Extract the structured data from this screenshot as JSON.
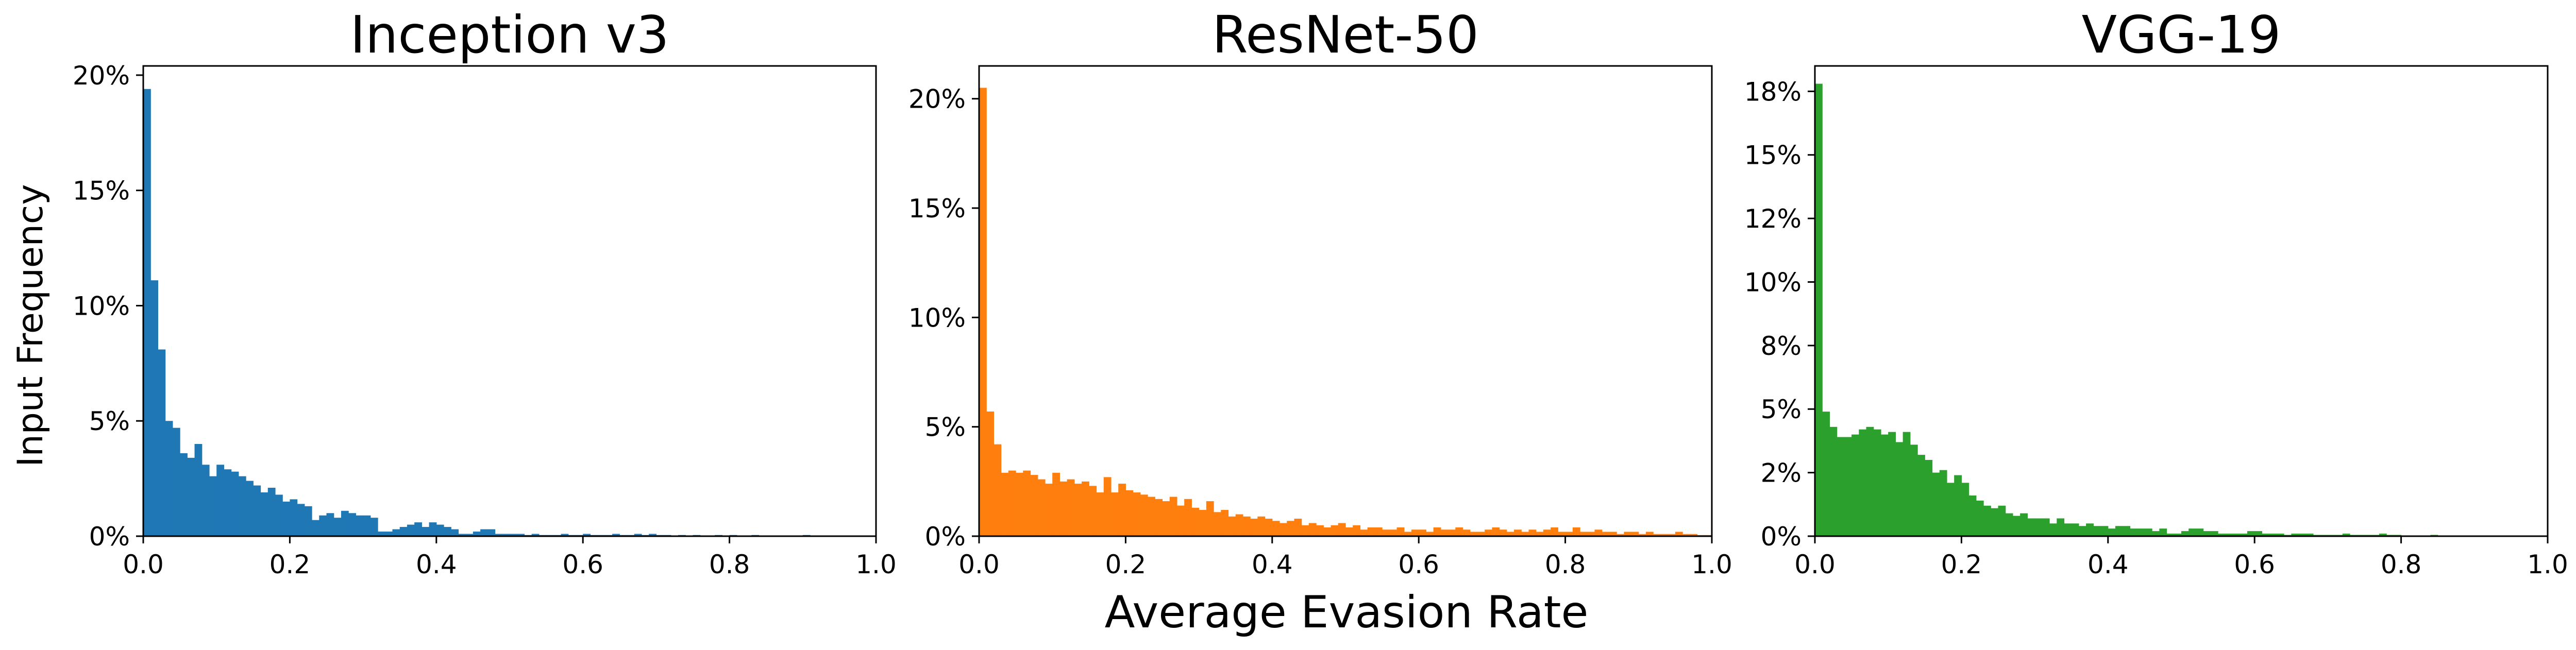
{
  "figure": {
    "ylabel": "Input Frequency",
    "xlabel": "Average Evasion Rate"
  },
  "chart_data": [
    {
      "type": "bar",
      "title": "Inception v3",
      "color": "#1f77b4",
      "xlim": [
        0,
        1
      ],
      "ylim": [
        0,
        20.4
      ],
      "xticks": [
        "0.0",
        "0.2",
        "0.4",
        "0.6",
        "0.8",
        "1.0"
      ],
      "yticks": [
        {
          "value": 0,
          "label": "0%"
        },
        {
          "value": 5,
          "label": "5%"
        },
        {
          "value": 10,
          "label": "10%"
        },
        {
          "value": 15,
          "label": "15%"
        },
        {
          "value": 20,
          "label": "20%"
        }
      ],
      "bin_width": 0.01,
      "values": [
        19.4,
        11.1,
        8.1,
        5.0,
        4.7,
        3.6,
        3.4,
        4.0,
        3.1,
        2.6,
        3.1,
        2.9,
        2.8,
        2.6,
        2.4,
        2.2,
        1.9,
        2.1,
        1.8,
        1.5,
        1.6,
        1.4,
        1.3,
        0.7,
        0.9,
        1.0,
        0.8,
        1.1,
        1.0,
        0.9,
        0.9,
        0.8,
        0.2,
        0.2,
        0.3,
        0.4,
        0.5,
        0.6,
        0.4,
        0.6,
        0.5,
        0.4,
        0.3,
        0.1,
        0.1,
        0.2,
        0.3,
        0.3,
        0.1,
        0.1,
        0.1,
        0.1,
        0.05,
        0.1,
        0.05,
        0.05,
        0.05,
        0.1,
        0.05,
        0.05,
        0.1,
        0.05,
        0.05,
        0.05,
        0.1,
        0.05,
        0.05,
        0.1,
        0.05,
        0.1,
        0.05,
        0.05,
        0,
        0.05,
        0,
        0.05,
        0,
        0,
        0.05,
        0,
        0.05,
        0,
        0,
        0.05,
        0,
        0,
        0,
        0,
        0,
        0,
        0.05,
        0,
        0,
        0,
        0,
        0,
        0,
        0,
        0,
        0
      ]
    },
    {
      "type": "bar",
      "title": "ResNet-50",
      "color": "#ff7f0e",
      "xlim": [
        0,
        1
      ],
      "ylim": [
        0,
        21.5
      ],
      "xticks": [
        "0.0",
        "0.2",
        "0.4",
        "0.6",
        "0.8",
        "1.0"
      ],
      "yticks": [
        {
          "value": 0,
          "label": "0%"
        },
        {
          "value": 5,
          "label": "5%"
        },
        {
          "value": 10,
          "label": "10%"
        },
        {
          "value": 15,
          "label": "15%"
        },
        {
          "value": 20,
          "label": "20%"
        }
      ],
      "bin_width": 0.01,
      "values": [
        20.5,
        5.7,
        4.2,
        2.9,
        3.0,
        2.9,
        3.0,
        2.8,
        2.6,
        2.4,
        2.9,
        2.5,
        2.6,
        2.4,
        2.5,
        2.3,
        2.0,
        2.7,
        2.0,
        2.4,
        2.1,
        2.0,
        1.9,
        1.8,
        1.7,
        1.6,
        1.8,
        1.4,
        1.7,
        1.3,
        1.2,
        1.6,
        1.1,
        1.2,
        0.9,
        1.0,
        0.9,
        0.8,
        0.9,
        0.8,
        0.7,
        0.6,
        0.7,
        0.8,
        0.5,
        0.6,
        0.5,
        0.4,
        0.5,
        0.6,
        0.4,
        0.5,
        0.3,
        0.4,
        0.4,
        0.3,
        0.3,
        0.4,
        0.2,
        0.3,
        0.3,
        0.2,
        0.4,
        0.3,
        0.3,
        0.4,
        0.3,
        0.2,
        0.2,
        0.3,
        0.4,
        0.3,
        0.2,
        0.3,
        0.2,
        0.3,
        0.2,
        0.3,
        0.4,
        0.2,
        0.2,
        0.4,
        0.2,
        0.2,
        0.3,
        0.2,
        0.2,
        0.1,
        0.2,
        0.2,
        0.1,
        0.2,
        0.1,
        0.1,
        0.1,
        0.2,
        0.1,
        0.1,
        0.05,
        0.05
      ]
    },
    {
      "type": "bar",
      "title": "VGG-19",
      "color": "#2ca02c",
      "xlim": [
        0,
        1
      ],
      "ylim": [
        0,
        18.5
      ],
      "xticks": [
        "0.0",
        "0.2",
        "0.4",
        "0.6",
        "0.8",
        "1.0"
      ],
      "yticks": [
        {
          "value": 0,
          "label": "0%"
        },
        {
          "value": 2.5,
          "label": "2%"
        },
        {
          "value": 5,
          "label": "5%"
        },
        {
          "value": 7.5,
          "label": "8%"
        },
        {
          "value": 10,
          "label": "10%"
        },
        {
          "value": 12.5,
          "label": "12%"
        },
        {
          "value": 15,
          "label": "15%"
        },
        {
          "value": 17.5,
          "label": "18%"
        }
      ],
      "bin_width": 0.01,
      "values": [
        17.8,
        4.9,
        4.3,
        3.9,
        3.9,
        4.0,
        4.2,
        4.3,
        4.2,
        4.0,
        4.1,
        3.7,
        4.1,
        3.6,
        3.2,
        3.0,
        2.5,
        2.6,
        2.1,
        2.4,
        2.1,
        1.6,
        1.4,
        1.2,
        1.1,
        1.2,
        0.9,
        0.8,
        0.9,
        0.7,
        0.7,
        0.7,
        0.5,
        0.7,
        0.5,
        0.5,
        0.4,
        0.5,
        0.4,
        0.4,
        0.3,
        0.4,
        0.4,
        0.3,
        0.3,
        0.3,
        0.2,
        0.3,
        0.1,
        0.1,
        0.2,
        0.3,
        0.3,
        0.2,
        0.2,
        0.1,
        0.1,
        0.1,
        0.1,
        0.2,
        0.2,
        0.1,
        0.1,
        0.1,
        0.05,
        0.1,
        0.1,
        0.1,
        0.05,
        0.05,
        0.05,
        0.05,
        0.1,
        0.05,
        0.05,
        0.05,
        0.05,
        0.1,
        0.05,
        0.05,
        0,
        0,
        0,
        0,
        0.05,
        0,
        0,
        0,
        0,
        0,
        0,
        0,
        0,
        0,
        0,
        0,
        0,
        0,
        0,
        0
      ]
    }
  ]
}
